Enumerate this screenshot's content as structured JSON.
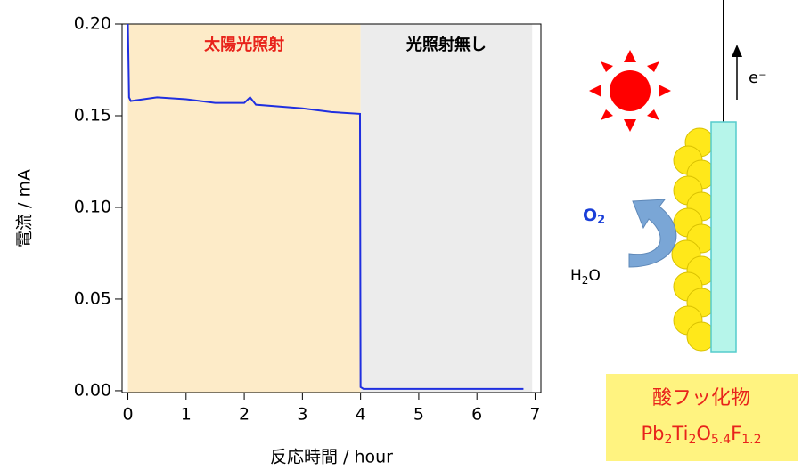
{
  "chart_data": {
    "type": "line",
    "x": [
      0,
      0.02,
      0.05,
      0.5,
      1,
      1.5,
      2,
      2.1,
      2.2,
      3,
      3.5,
      3.99,
      4.0,
      4.05,
      5,
      6,
      6.8
    ],
    "series": [
      {
        "color": "#1f2fe0",
        "values": [
          0.2,
          0.16,
          0.158,
          0.16,
          0.159,
          0.157,
          0.157,
          0.16,
          0.156,
          0.154,
          0.152,
          0.151,
          0.002,
          0.001,
          0.001,
          0.001,
          0.001
        ]
      }
    ],
    "xlim": [
      -0.1,
      7.1
    ],
    "ylim": [
      -0.001,
      0.2
    ],
    "xticks": [
      0,
      1,
      2,
      3,
      4,
      5,
      6,
      7
    ],
    "yticks": [
      {
        "value": 0,
        "label": "0.00"
      },
      {
        "value": 0.05,
        "label": "0.05"
      },
      {
        "value": 0.1,
        "label": "0.10"
      },
      {
        "value": 0.15,
        "label": "0.15"
      },
      {
        "value": 0.2,
        "label": "0.20"
      }
    ],
    "xlabel": "反応時間  / hour",
    "ylabel": "電流  / mA",
    "regions": [
      {
        "from": 0,
        "to": 4,
        "color": "#fdebc8",
        "label": "太陽光照射",
        "label_color": "#e8231b"
      },
      {
        "from": 4,
        "to": 6.95,
        "color": "#ececec",
        "label": "光照射無し",
        "label_color": "#000000"
      }
    ]
  },
  "diagram": {
    "electron": "e⁻",
    "oxygen": [
      "O",
      "2"
    ],
    "water": [
      "H",
      "2",
      "O"
    ],
    "material": "酸フッ化物",
    "formula": [
      "Pb",
      "2",
      "Ti",
      "2",
      "O",
      "5.4",
      "F",
      "1.2"
    ]
  }
}
